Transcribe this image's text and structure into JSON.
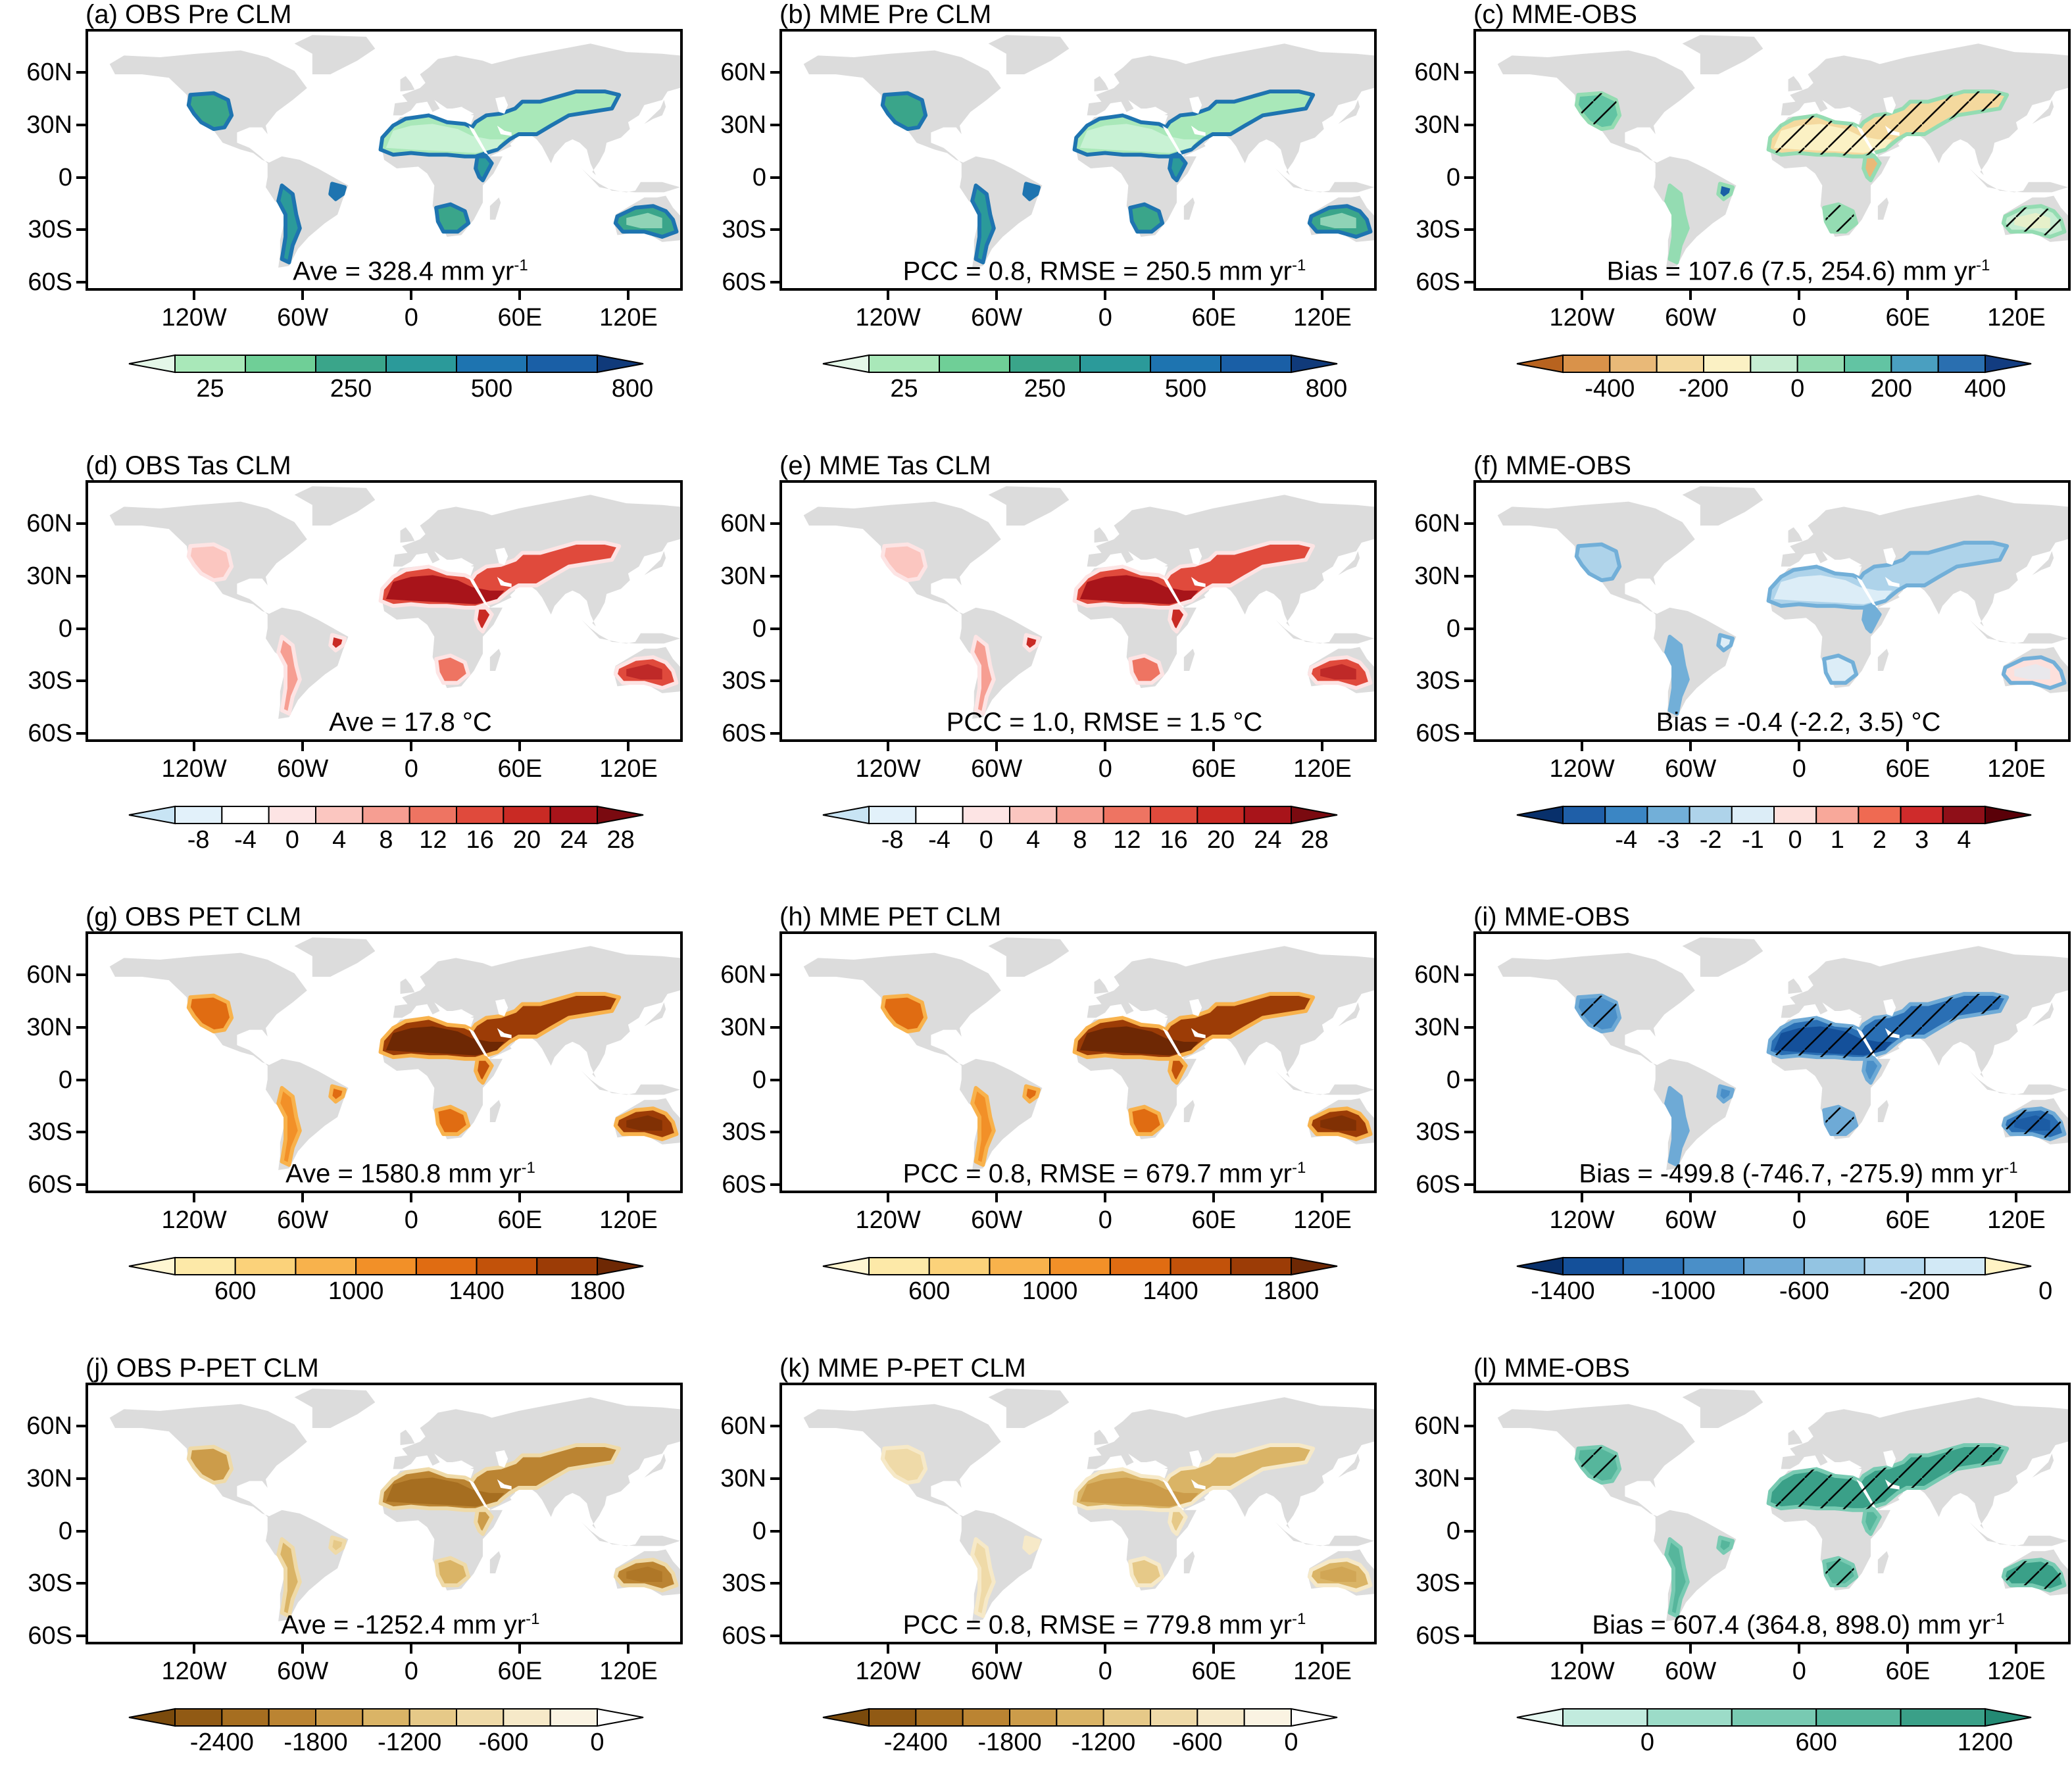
{
  "panels": [
    {
      "id": "a",
      "title": "(a) OBS Pre CLM",
      "stat": "Ave = 328.4 mm yr",
      "stat_sup": "-1",
      "palette": "precip",
      "hatch": false,
      "cbar": {
        "type": "precip",
        "labels": [
          "25",
          "250",
          "500",
          "800"
        ],
        "colors": [
          "#e4f7e8",
          "#a9e8b9",
          "#6fcf97",
          "#3aa58a",
          "#2b9a9a",
          "#1e74b0",
          "#1a5fa6",
          "#103a7a"
        ]
      }
    },
    {
      "id": "b",
      "title": "(b) MME Pre CLM",
      "stat": "PCC = 0.8, RMSE = 250.5 mm yr",
      "stat_sup": "-1",
      "palette": "precip",
      "hatch": false,
      "cbar": {
        "type": "precip",
        "labels": [
          "25",
          "250",
          "500",
          "800"
        ],
        "colors": [
          "#e4f7e8",
          "#a9e8b9",
          "#6fcf97",
          "#3aa58a",
          "#2b9a9a",
          "#1e74b0",
          "#1a5fa6",
          "#103a7a"
        ]
      }
    },
    {
      "id": "c",
      "title": "(c) MME-OBS",
      "stat": "Bias = 107.6 (7.5, 254.6) mm yr",
      "stat_sup": "-1",
      "palette": "pbias",
      "hatch": true,
      "cbar": {
        "type": "div",
        "labels": [
          "-400",
          "-200",
          "0",
          "200",
          "400"
        ],
        "colors": [
          "#b8631f",
          "#d9924a",
          "#e9b978",
          "#f4d99e",
          "#fbf1c4",
          "#c6edd2",
          "#94dcb2",
          "#62c4a3",
          "#4a9fc0",
          "#2a6fb0",
          "#123c80"
        ]
      }
    },
    {
      "id": "d",
      "title": "(d) OBS Tas CLM",
      "stat": "Ave = 17.8 °C",
      "stat_sup": "",
      "palette": "tas",
      "hatch": false,
      "cbar": {
        "type": "tas",
        "labels": [
          "-8",
          "-4",
          "0",
          "4",
          "8",
          "12",
          "16",
          "20",
          "24",
          "28"
        ],
        "colors": [
          "#c8e4f4",
          "#e2f1fa",
          "#ffffff",
          "#fde4e4",
          "#fbc6c0",
          "#f69e92",
          "#ee7462",
          "#e04a3c",
          "#c92a24",
          "#a8141a",
          "#7a0a10"
        ]
      }
    },
    {
      "id": "e",
      "title": "(e) MME Tas CLM",
      "stat": "PCC = 1.0, RMSE = 1.5 °C",
      "stat_sup": "",
      "palette": "tas",
      "hatch": false,
      "cbar": {
        "type": "tas",
        "labels": [
          "-8",
          "-4",
          "0",
          "4",
          "8",
          "12",
          "16",
          "20",
          "24",
          "28"
        ],
        "colors": [
          "#c8e4f4",
          "#e2f1fa",
          "#ffffff",
          "#fde4e4",
          "#fbc6c0",
          "#f69e92",
          "#ee7462",
          "#e04a3c",
          "#c92a24",
          "#a8141a",
          "#7a0a10"
        ]
      }
    },
    {
      "id": "f",
      "title": "(f) MME-OBS",
      "stat": "Bias = -0.4 (-2.2, 3.5) °C",
      "stat_sup": "",
      "palette": "tbias",
      "hatch": false,
      "cbar": {
        "type": "div",
        "labels": [
          "-4",
          "-3",
          "-2",
          "-1",
          "0",
          "1",
          "2",
          "3",
          "4"
        ],
        "colors": [
          "#08306b",
          "#1f5fa8",
          "#3b86c4",
          "#72afd8",
          "#aed3ea",
          "#dcedf7",
          "#fde0dc",
          "#f8a89a",
          "#ef6a52",
          "#cf2b2b",
          "#8f0f18",
          "#5a0008"
        ]
      }
    },
    {
      "id": "g",
      "title": "(g) OBS PET CLM",
      "stat": "Ave = 1580.8 mm yr",
      "stat_sup": "-1",
      "palette": "pet",
      "hatch": false,
      "cbar": {
        "type": "pet",
        "labels": [
          "600",
          "1000",
          "1400",
          "1800"
        ],
        "colors": [
          "#fff6d2",
          "#fde9a8",
          "#fbd27a",
          "#f8b24c",
          "#f29028",
          "#e06c12",
          "#c2520a",
          "#9c3c06",
          "#6e2804"
        ]
      }
    },
    {
      "id": "h",
      "title": "(h) MME PET CLM",
      "stat": "PCC = 0.8, RMSE = 679.7 mm yr",
      "stat_sup": "-1",
      "palette": "pet",
      "hatch": false,
      "cbar": {
        "type": "pet",
        "labels": [
          "600",
          "1000",
          "1400",
          "1800"
        ],
        "colors": [
          "#fff6d2",
          "#fde9a8",
          "#fbd27a",
          "#f8b24c",
          "#f29028",
          "#e06c12",
          "#c2520a",
          "#9c3c06",
          "#6e2804"
        ]
      }
    },
    {
      "id": "i",
      "title": "(i) MME-OBS",
      "stat": "Bias = -499.8 (-746.7, -275.9) mm yr",
      "stat_sup": "-1",
      "palette": "petbias",
      "hatch": true,
      "cbar": {
        "type": "petbias",
        "labels": [
          "-1400",
          "-1000",
          "-600",
          "-200",
          "0"
        ],
        "colors": [
          "#08306b",
          "#14509a",
          "#2a6fb4",
          "#4a8fc8",
          "#6eaad6",
          "#93c4e2",
          "#b4d8ee",
          "#d2e9f6",
          "#fff3c4"
        ]
      }
    },
    {
      "id": "j",
      "title": "(j) OBS P-PET CLM",
      "stat": "Ave = -1252.4 mm yr",
      "stat_sup": "-1",
      "palette": "ppet",
      "hatch": false,
      "cbar": {
        "type": "ppet",
        "labels": [
          "-2400",
          "-1800",
          "-1200",
          "-600",
          "0"
        ],
        "colors": [
          "#7a4a0c",
          "#915a14",
          "#a66e20",
          "#bb8432",
          "#cc9c4a",
          "#dab466",
          "#e6c988",
          "#efdaa8",
          "#f6e9c8",
          "#faf3e2",
          "#ffffff"
        ]
      }
    },
    {
      "id": "k",
      "title": "(k) MME P-PET CLM",
      "stat": "PCC = 0.8, RMSE = 779.8 mm yr",
      "stat_sup": "-1",
      "palette": "ppetm",
      "hatch": false,
      "cbar": {
        "type": "ppet",
        "labels": [
          "-2400",
          "-1800",
          "-1200",
          "-600",
          "0"
        ],
        "colors": [
          "#7a4a0c",
          "#915a14",
          "#a66e20",
          "#bb8432",
          "#cc9c4a",
          "#dab466",
          "#e6c988",
          "#efdaa8",
          "#f6e9c8",
          "#faf3e2",
          "#ffffff"
        ]
      }
    },
    {
      "id": "l",
      "title": "(l) MME-OBS",
      "stat": "Bias = 607.4 (364.8, 898.0) mm yr",
      "stat_sup": "-1",
      "palette": "ppetbias",
      "hatch": true,
      "cbar": {
        "type": "ppetbias",
        "labels": [
          "0",
          "600",
          "1200"
        ],
        "colors": [
          "#e6f7f1",
          "#c2ebde",
          "#9cdcc8",
          "#78cab2",
          "#56b69c",
          "#3aa088",
          "#238a74"
        ]
      }
    }
  ],
  "axes": {
    "lat_labels": [
      "60N",
      "30N",
      "0",
      "30S",
      "60S"
    ],
    "lon_labels": [
      "120W",
      "60W",
      "0",
      "60E",
      "120E"
    ]
  },
  "map_colors": {
    "land": "#dcdcdc",
    "hatch": "#000000"
  }
}
